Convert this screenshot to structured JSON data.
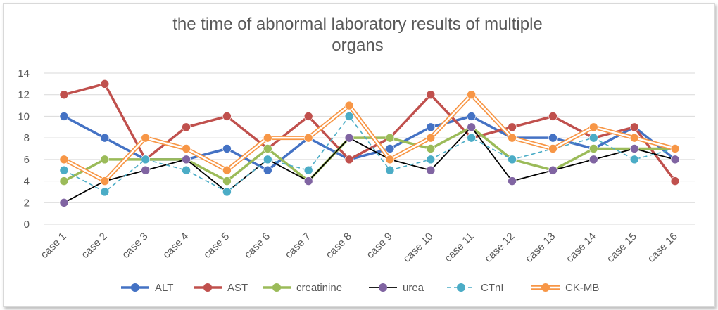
{
  "chart_data": {
    "type": "line",
    "title": "the time of abnormal laboratory results of multiple organs",
    "title_lines": [
      "the time of abnormal laboratory results of multiple",
      "organs"
    ],
    "categories": [
      "case 1",
      "case 2",
      "case 3",
      "case 4",
      "case 5",
      "case 6",
      "case 7",
      "case 8",
      "case 9",
      "case 10",
      "case 11",
      "case 12",
      "case 13",
      "case 14",
      "case 15",
      "case 16"
    ],
    "ylim": [
      0,
      14
    ],
    "yticks": [
      0,
      2,
      4,
      6,
      8,
      10,
      12,
      14
    ],
    "grid": true,
    "legend_position": "bottom",
    "series": [
      {
        "name": "ALT",
        "color": "#4472c4",
        "dash": "solid",
        "values": [
          10,
          8,
          6,
          6,
          7,
          5,
          8,
          6,
          7,
          9,
          10,
          8,
          8,
          7,
          9,
          6
        ]
      },
      {
        "name": "AST",
        "color": "#c0504d",
        "dash": "solid",
        "values": [
          12,
          13,
          6,
          9,
          10,
          7,
          10,
          6,
          8,
          12,
          8,
          9,
          10,
          8,
          9,
          4
        ]
      },
      {
        "name": "creatinine",
        "color": "#9bbb59",
        "dash": "solid",
        "values": [
          4,
          6,
          6,
          6,
          4,
          7,
          4,
          8,
          8,
          7,
          9,
          6,
          5,
          7,
          7,
          7
        ]
      },
      {
        "name": "urea",
        "color": "#000000",
        "marker_color": "#8064a2",
        "dash": "solid",
        "values": [
          2,
          4,
          5,
          6,
          3,
          6,
          4,
          8,
          6,
          5,
          9,
          4,
          5,
          6,
          7,
          6
        ]
      },
      {
        "name": "CTnI",
        "color": "#4bacc6",
        "dash": "dashed",
        "values": [
          5,
          3,
          6,
          5,
          3,
          6,
          5,
          10,
          5,
          6,
          8,
          6,
          7,
          8,
          6,
          7
        ]
      },
      {
        "name": "CK-MB",
        "color": "#f79646",
        "dash": "double",
        "values": [
          6,
          4,
          8,
          7,
          5,
          8,
          8,
          11,
          6,
          8,
          12,
          8,
          7,
          9,
          8,
          7
        ]
      }
    ]
  }
}
